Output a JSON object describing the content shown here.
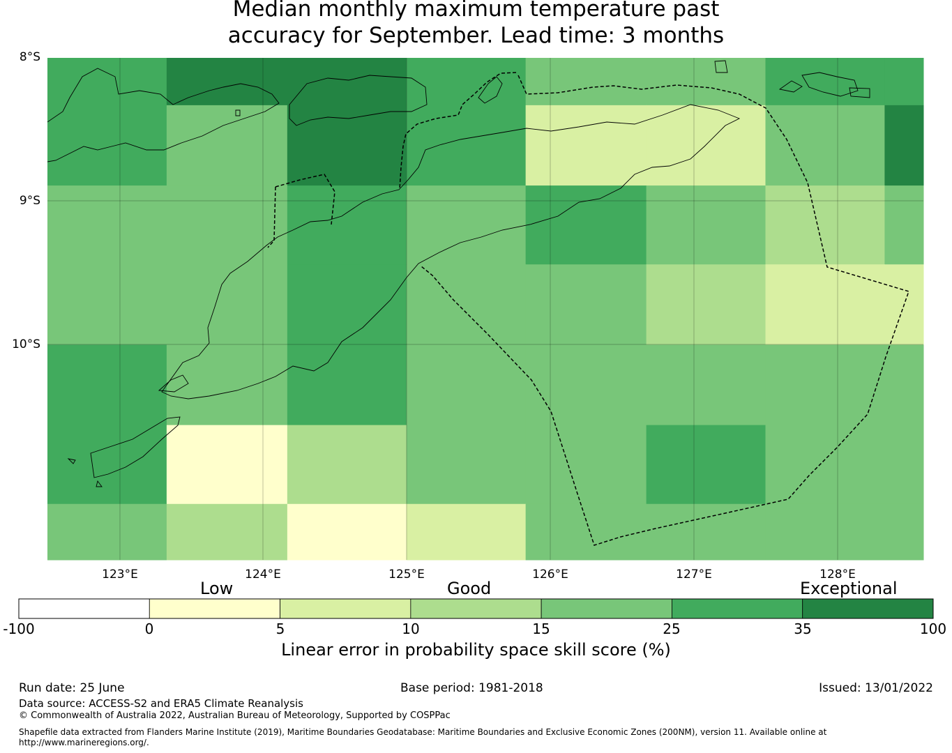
{
  "title_line1": "Median monthly maximum temperature past",
  "title_line2": "accuracy for September. Lead time: 3 months",
  "lat_labels": [
    "8°S",
    "9°S",
    "10°S"
  ],
  "lon_labels": [
    "123°E",
    "124°E",
    "125°E",
    "126°E",
    "127°E",
    "128°E"
  ],
  "category_labels": {
    "low": "Low",
    "good": "Good",
    "exceptional": "Exceptional"
  },
  "colorbar": {
    "ticks": [
      "-100",
      "0",
      "5",
      "10",
      "15",
      "25",
      "35",
      "100"
    ],
    "label": "Linear error in probability space skill score (%)",
    "colors": [
      "#ffffff",
      "#ffffcc",
      "#d9f0a3",
      "#addd8e",
      "#78c679",
      "#41ab5d",
      "#238443"
    ]
  },
  "footer": {
    "run_date": "Run date: 25 June",
    "base_period": "Base period: 1981-2018",
    "issued": "Issued: 13/01/2022",
    "data_source": "Data source: ACCESS-S2 and ERA5 Climate Reanalysis",
    "copyright": "© Commonwealth of Australia 2022, Australian Bureau of Meteorology, Supported by COSPPac",
    "shapefile": "Shapefile data extracted from Flanders Marine Institute (2019), Maritime Boundaries Geodatabase: Maritime Boundaries and Exclusive Economic Zones (200NM), version 11. Available online at http://www.marineregions.org/."
  },
  "chart_data": {
    "type": "heatmap",
    "value_unit": "%",
    "levels": [
      {
        "category": "[-100, 0)",
        "color": "#ffffff"
      },
      {
        "category": "[0, 5)",
        "color": "#ffffcc"
      },
      {
        "category": "[5, 10)",
        "color": "#d9f0a3"
      },
      {
        "category": "[10, 15)",
        "color": "#addd8e"
      },
      {
        "category": "[15, 25)",
        "color": "#78c679"
      },
      {
        "category": "[25, 35)",
        "color": "#41ab5d"
      },
      {
        "category": "[35, 100]",
        "color": "#238443"
      }
    ],
    "x_range": [
      122.5,
      128.6
    ],
    "y_range": [
      -11.5,
      -8.0
    ],
    "cell_columns_lon": [
      [
        122.5,
        123.33
      ],
      [
        123.33,
        124.17
      ],
      [
        124.17,
        125.0
      ],
      [
        125.0,
        125.83
      ],
      [
        125.83,
        126.67
      ],
      [
        126.67,
        127.5
      ],
      [
        127.5,
        128.33
      ],
      [
        128.33,
        128.6
      ]
    ],
    "cell_rows_lat": [
      [
        -8.0,
        -8.33
      ],
      [
        -8.33,
        -8.89
      ],
      [
        -8.89,
        -9.44
      ],
      [
        -9.44,
        -10.0
      ],
      [
        -10.0,
        -10.56
      ],
      [
        -10.56,
        -11.11
      ],
      [
        -11.11,
        -11.5
      ]
    ],
    "grid_levels": [
      [
        5,
        6,
        6,
        5,
        4,
        4,
        5,
        5
      ],
      [
        5,
        4,
        6,
        5,
        2,
        2,
        4,
        6
      ],
      [
        4,
        4,
        5,
        4,
        5,
        4,
        3,
        4
      ],
      [
        4,
        4,
        5,
        4,
        4,
        3,
        2,
        2
      ],
      [
        5,
        4,
        5,
        4,
        4,
        4,
        4,
        4
      ],
      [
        5,
        1,
        3,
        4,
        4,
        5,
        4,
        4
      ],
      [
        4,
        3,
        1,
        2,
        4,
        4,
        4,
        4
      ]
    ]
  }
}
